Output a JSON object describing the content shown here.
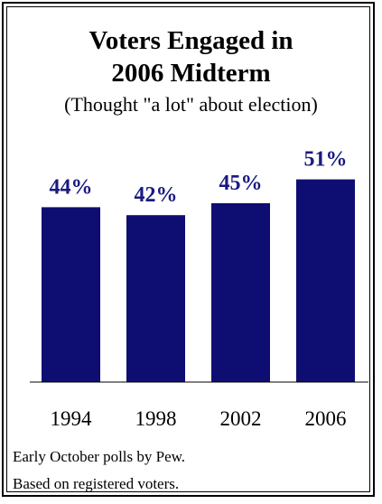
{
  "title_line1": "Voters Engaged in",
  "title_line2": "2006 Midterm",
  "subtitle": "(Thought \"a lot\" about election)",
  "note_line1": "Early October polls by Pew.",
  "note_line2": "Based on registered voters.",
  "colors": {
    "bar": "#0e0e72",
    "label": "#1a1a80",
    "axis": "#000000"
  },
  "chart_data": {
    "type": "bar",
    "title": "Voters Engaged in 2006 Midterm",
    "subtitle": "(Thought \"a lot\" about election)",
    "categories": [
      "1994",
      "1998",
      "2002",
      "2006"
    ],
    "values": [
      44,
      42,
      45,
      51
    ],
    "data_labels": [
      "44%",
      "42%",
      "45%",
      "51%"
    ],
    "xlabel": "",
    "ylabel": "",
    "ylim": [
      0,
      51
    ],
    "grid": false,
    "legend": "none"
  }
}
